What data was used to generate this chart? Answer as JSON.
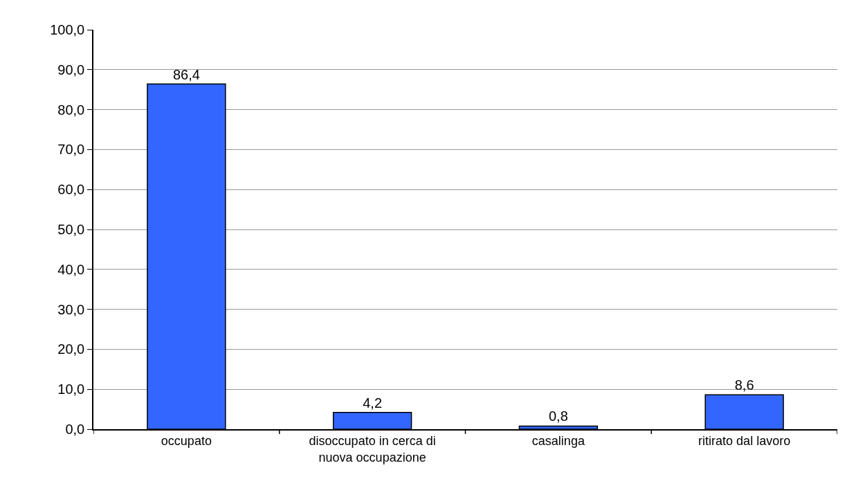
{
  "chart_data": {
    "type": "bar",
    "categories": [
      "occupato",
      "disoccupato in cerca di nuova occupazione",
      "casalinga",
      "ritirato dal lavoro"
    ],
    "values": [
      86.4,
      4.2,
      0.8,
      8.6
    ],
    "value_labels": [
      "86,4",
      "4,2",
      "0,8",
      "8,6"
    ],
    "color": "#3366ff",
    "ylim": [
      0,
      100
    ],
    "yticks": [
      {
        "value": 0,
        "label": "0,0"
      },
      {
        "value": 10,
        "label": "10,0"
      },
      {
        "value": 20,
        "label": "20,0"
      },
      {
        "value": 30,
        "label": "30,0"
      },
      {
        "value": 40,
        "label": "40,0"
      },
      {
        "value": 50,
        "label": "50,0"
      },
      {
        "value": 60,
        "label": "60,0"
      },
      {
        "value": 70,
        "label": "70,0"
      },
      {
        "value": 80,
        "label": "80,0"
      },
      {
        "value": 90,
        "label": "90,0"
      },
      {
        "value": 100,
        "label": "100,0"
      }
    ],
    "grid": "y"
  }
}
